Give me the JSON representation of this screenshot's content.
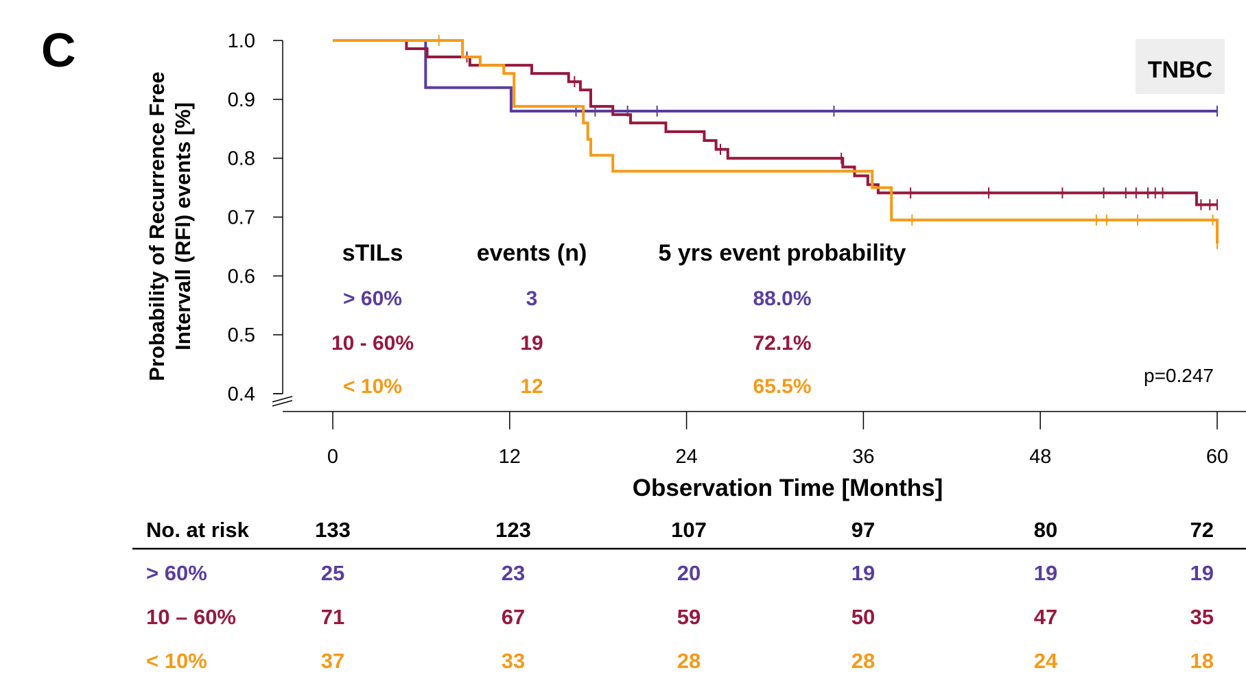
{
  "panel_letter": "C",
  "subgroup_badge": "TNBC",
  "p_value": "p=0.247",
  "colors": {
    "high": "#5a3d9e",
    "mid": "#97183e",
    "low": "#f59a17",
    "axis": "#000000",
    "badge_bg": "#eeeeee"
  },
  "legend_table": {
    "headers": [
      "sTILs",
      "events (n)",
      "5 yrs event probability"
    ],
    "rows": [
      {
        "group": "> 60%",
        "events": "3",
        "prob": "88.0%",
        "color_key": "high"
      },
      {
        "group": "10 - 60%",
        "events": "19",
        "prob": "72.1%",
        "color_key": "mid"
      },
      {
        "group": "< 10%",
        "events": "12",
        "prob": "65.5%",
        "color_key": "low"
      }
    ]
  },
  "risk_table": {
    "header_label": "No. at risk",
    "times": [
      0,
      12,
      24,
      36,
      48,
      60
    ],
    "totals": [
      "133",
      "123",
      "107",
      "97",
      "80",
      "72"
    ],
    "rows": [
      {
        "label": "> 60%",
        "color_key": "high",
        "values": [
          "25",
          "23",
          "20",
          "19",
          "19",
          "19"
        ]
      },
      {
        "label": "10 – 60%",
        "color_key": "mid",
        "values": [
          "71",
          "67",
          "59",
          "50",
          "47",
          "35"
        ]
      },
      {
        "label": "< 10%",
        "color_key": "low",
        "values": [
          "37",
          "33",
          "28",
          "28",
          "24",
          "18"
        ]
      }
    ]
  },
  "chart_data": {
    "type": "line",
    "step": true,
    "xlabel": "Observation Time [Months]",
    "ylabel": "Probability of Recurrence Free Intervall (RFI) events [%]",
    "xlim": [
      0,
      60
    ],
    "ylim": [
      0.4,
      1.0
    ],
    "y_axis_break": true,
    "x_ticks": [
      0,
      12,
      24,
      36,
      48,
      60
    ],
    "y_ticks": [
      0.4,
      0.5,
      0.6,
      0.7,
      0.8,
      0.9,
      1.0
    ],
    "y_tick_labels": [
      "0.4",
      "0.5",
      "0.6",
      "0.7",
      "0.8",
      "0.9",
      "1.0"
    ],
    "grid": false,
    "series": [
      {
        "name": "> 60%",
        "color_key": "high",
        "points": [
          [
            0,
            1.0
          ],
          [
            6.3,
            1.0
          ],
          [
            6.3,
            0.92
          ],
          [
            12.1,
            0.92
          ],
          [
            12.1,
            0.88
          ],
          [
            60,
            0.88
          ]
        ],
        "censor_x": [
          16.5,
          17.8,
          20,
          22,
          34,
          60
        ]
      },
      {
        "name": "10 - 60%",
        "color_key": "mid",
        "points": [
          [
            0,
            1.0
          ],
          [
            5,
            1.0
          ],
          [
            5,
            0.986
          ],
          [
            6.4,
            0.986
          ],
          [
            6.4,
            0.972
          ],
          [
            9.3,
            0.972
          ],
          [
            9.3,
            0.958
          ],
          [
            13.5,
            0.958
          ],
          [
            13.5,
            0.944
          ],
          [
            16,
            0.944
          ],
          [
            16,
            0.93
          ],
          [
            16.8,
            0.93
          ],
          [
            16.8,
            0.916
          ],
          [
            17.5,
            0.916
          ],
          [
            17.5,
            0.888
          ],
          [
            19,
            0.888
          ],
          [
            19,
            0.874
          ],
          [
            20.2,
            0.874
          ],
          [
            20.2,
            0.86
          ],
          [
            22.6,
            0.86
          ],
          [
            22.6,
            0.845
          ],
          [
            25.2,
            0.845
          ],
          [
            25.2,
            0.83
          ],
          [
            26,
            0.83
          ],
          [
            26,
            0.815
          ],
          [
            26.8,
            0.815
          ],
          [
            26.8,
            0.8
          ],
          [
            34.6,
            0.8
          ],
          [
            34.6,
            0.785
          ],
          [
            35.4,
            0.785
          ],
          [
            35.4,
            0.77
          ],
          [
            36.3,
            0.77
          ],
          [
            36.3,
            0.755
          ],
          [
            37,
            0.755
          ],
          [
            37,
            0.741
          ],
          [
            58.6,
            0.741
          ],
          [
            58.6,
            0.721
          ],
          [
            60,
            0.721
          ]
        ],
        "censor_x": [
          9.1,
          16.4,
          26.3,
          34.5,
          39.2,
          44.5,
          49.5,
          52.3,
          53.8,
          54.5,
          55.3,
          55.8,
          56.3,
          58.9,
          59.5,
          60
        ]
      },
      {
        "name": "< 10%",
        "color_key": "low",
        "points": [
          [
            0,
            1.0
          ],
          [
            8.8,
            1.0
          ],
          [
            8.8,
            0.972
          ],
          [
            10,
            0.972
          ],
          [
            10,
            0.958
          ],
          [
            11.6,
            0.958
          ],
          [
            11.6,
            0.944
          ],
          [
            12.3,
            0.944
          ],
          [
            12.3,
            0.888
          ],
          [
            17,
            0.888
          ],
          [
            17,
            0.86
          ],
          [
            17.3,
            0.86
          ],
          [
            17.3,
            0.832
          ],
          [
            17.5,
            0.832
          ],
          [
            17.5,
            0.805
          ],
          [
            19,
            0.805
          ],
          [
            19,
            0.778
          ],
          [
            36.6,
            0.778
          ],
          [
            36.6,
            0.75
          ],
          [
            37.9,
            0.75
          ],
          [
            37.9,
            0.695
          ],
          [
            60,
            0.695
          ],
          [
            60,
            0.655
          ]
        ],
        "censor_x": [
          7.2,
          39.3,
          51.8,
          52.5,
          54.6,
          59.7,
          60
        ]
      }
    ]
  }
}
